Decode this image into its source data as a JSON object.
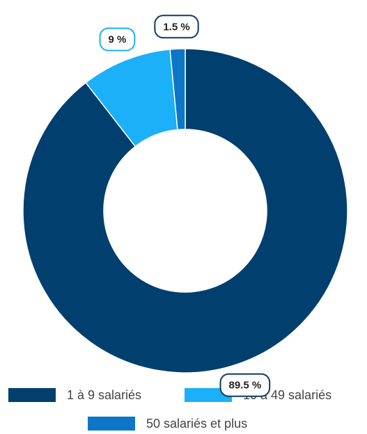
{
  "chart_data": {
    "type": "donut",
    "categories": [
      "1 à 9 salariés",
      "10 à 49 salariés",
      "50 salariés et plus"
    ],
    "values": [
      89.5,
      9,
      1.5
    ],
    "value_labels": [
      "89.5 %",
      "9 %",
      "1.5 %"
    ],
    "colors": [
      "#003f6e",
      "#1bb0f8",
      "#0d76c7"
    ],
    "legend": "bottom"
  }
}
